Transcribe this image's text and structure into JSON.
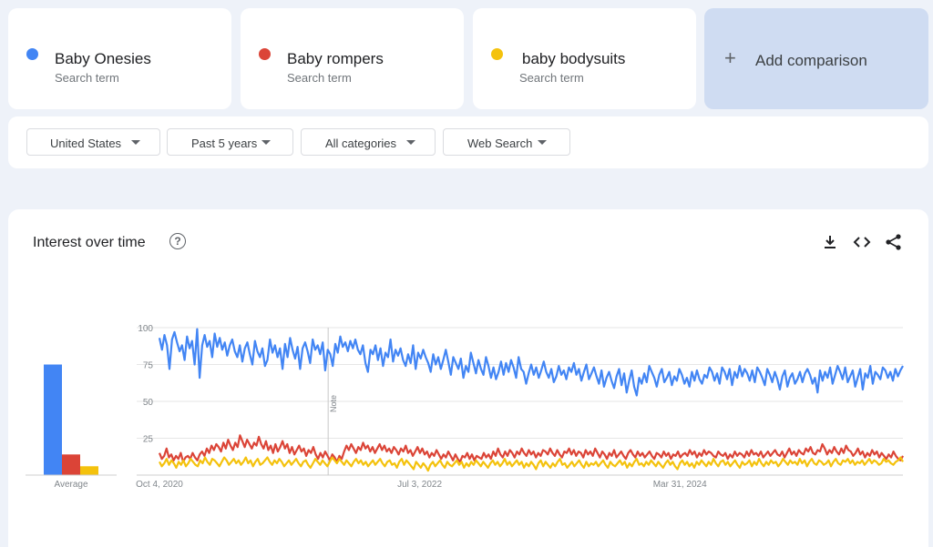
{
  "terms": [
    {
      "name": "Baby Onesies",
      "sub": "Search term",
      "color": "#4285f4"
    },
    {
      "name": "Baby rompers",
      "sub": "Search term",
      "color": "#db4437"
    },
    {
      "name": "baby bodysuits",
      "sub": "Search term",
      "color": "#f4c20d"
    }
  ],
  "add_comparison": "Add comparison",
  "filters": {
    "region": "United States",
    "time": "Past 5 years",
    "category": "All categories",
    "search_type": "Web Search"
  },
  "panel": {
    "title": "Interest over time",
    "icons": [
      "help-icon",
      "download-icon",
      "embed-icon",
      "share-icon"
    ]
  },
  "chart_data": {
    "type": "line",
    "title": "Interest over time",
    "ylim": [
      0,
      100
    ],
    "yticks": [
      25,
      50,
      75,
      100
    ],
    "xtick_labels": [
      "Oct 4, 2020",
      "Jul 3, 2022",
      "Mar 31, 2024"
    ],
    "x_range": [
      "2020-10-04",
      "2025-09-28"
    ],
    "annotation": {
      "label": "Note",
      "date": "2021-11-21"
    },
    "grid": true,
    "averages_label": "Average",
    "averages": [
      75,
      14,
      6
    ],
    "series": [
      {
        "name": "Baby Onesies",
        "color": "#4285f4",
        "values": [
          93,
          85,
          95,
          88,
          72,
          92,
          97,
          90,
          84,
          88,
          78,
          94,
          86,
          91,
          75,
          99,
          66,
          88,
          95,
          87,
          91,
          80,
          96,
          87,
          93,
          85,
          90,
          81,
          88,
          92,
          84,
          80,
          88,
          77,
          86,
          90,
          82,
          75,
          91,
          84,
          80,
          86,
          74,
          78,
          92,
          83,
          88,
          80,
          86,
          72,
          89,
          80,
          93,
          85,
          79,
          87,
          72,
          86,
          90,
          84,
          76,
          92,
          85,
          88,
          82,
          90,
          71,
          85,
          82,
          74,
          89,
          83,
          94,
          87,
          90,
          84,
          91,
          86,
          92,
          85,
          82,
          88,
          76,
          70,
          85,
          82,
          88,
          78,
          86,
          74,
          83,
          80,
          92,
          77,
          85,
          81,
          86,
          78,
          74,
          82,
          76,
          88,
          72,
          83,
          79,
          85,
          80,
          76,
          70,
          82,
          75,
          80,
          72,
          78,
          85,
          77,
          68,
          80,
          76,
          72,
          79,
          66,
          74,
          70,
          83,
          76,
          69,
          78,
          72,
          68,
          80,
          74,
          66,
          73,
          65,
          70,
          77,
          68,
          76,
          70,
          78,
          73,
          66,
          80,
          72,
          70,
          62,
          69,
          75,
          68,
          73,
          66,
          71,
          77,
          70,
          66,
          72,
          63,
          67,
          74,
          68,
          71,
          65,
          73,
          70,
          76,
          68,
          72,
          64,
          70,
          75,
          65,
          69,
          73,
          67,
          62,
          71,
          60,
          66,
          70,
          64,
          59,
          67,
          72,
          61,
          69,
          56,
          64,
          71,
          60,
          54,
          66,
          62,
          69,
          63,
          74,
          70,
          66,
          60,
          68,
          72,
          63,
          66,
          70,
          61,
          67,
          64,
          72,
          68,
          62,
          66,
          60,
          70,
          64,
          71,
          65,
          62,
          68,
          66,
          73,
          70,
          64,
          69,
          62,
          73,
          70,
          65,
          72,
          61,
          70,
          66,
          74,
          67,
          72,
          69,
          64,
          71,
          63,
          73,
          70,
          66,
          61,
          72,
          68,
          63,
          70,
          65,
          58,
          67,
          71,
          60,
          66,
          69,
          62,
          65,
          70,
          63,
          69,
          72,
          68,
          62,
          66,
          56,
          71,
          64,
          70,
          66,
          73,
          62,
          68,
          74,
          70,
          65,
          73,
          63,
          67,
          71,
          60,
          66,
          72,
          58,
          69,
          66,
          74,
          62,
          70,
          68,
          65,
          73,
          71,
          66,
          70,
          64,
          72,
          67,
          71,
          74
        ]
      },
      {
        "name": "Baby rompers",
        "color": "#db4437",
        "values": [
          15,
          11,
          13,
          18,
          12,
          14,
          10,
          13,
          11,
          15,
          9,
          12,
          13,
          11,
          15,
          12,
          10,
          14,
          16,
          13,
          18,
          15,
          20,
          17,
          21,
          19,
          16,
          22,
          18,
          24,
          20,
          17,
          22,
          19,
          27,
          23,
          19,
          24,
          21,
          18,
          22,
          20,
          26,
          21,
          18,
          23,
          17,
          20,
          15,
          21,
          16,
          19,
          23,
          18,
          21,
          15,
          19,
          14,
          17,
          20,
          16,
          18,
          13,
          17,
          15,
          19,
          14,
          11,
          15,
          12,
          16,
          13,
          10,
          14,
          12,
          9,
          13,
          11,
          16,
          20,
          17,
          21,
          18,
          15,
          19,
          17,
          22,
          18,
          20,
          16,
          19,
          15,
          18,
          21,
          17,
          20,
          16,
          18,
          15,
          19,
          17,
          14,
          18,
          16,
          20,
          15,
          17,
          13,
          16,
          19,
          15,
          18,
          14,
          16,
          12,
          15,
          13,
          17,
          14,
          11,
          14,
          12,
          16,
          13,
          10,
          14,
          11,
          9,
          13,
          12,
          15,
          11,
          14,
          10,
          13,
          12,
          11,
          15,
          12,
          14,
          11,
          16,
          13,
          18,
          14,
          12,
          16,
          13,
          17,
          15,
          12,
          16,
          14,
          18,
          15,
          13,
          17,
          14,
          16,
          12,
          15,
          13,
          17,
          16,
          14,
          18,
          15,
          13,
          17,
          14,
          12,
          16,
          15,
          18,
          14,
          17,
          13,
          16,
          15,
          12,
          17,
          14,
          16,
          13,
          18,
          15,
          12,
          16,
          14,
          11,
          15,
          13,
          17,
          12,
          14,
          16,
          13,
          11,
          15,
          17,
          14,
          12,
          16,
          13,
          15,
          12,
          14,
          16,
          13,
          11,
          15,
          14,
          12,
          16,
          13,
          15,
          11,
          14,
          13,
          16,
          12,
          14,
          15,
          13,
          17,
          14,
          16,
          12,
          15,
          13,
          17,
          14,
          16,
          15,
          13,
          12,
          16,
          14,
          13,
          15,
          11,
          14,
          12,
          16,
          13,
          15,
          14,
          12,
          16,
          13,
          17,
          14,
          15,
          13,
          16,
          12,
          14,
          16,
          13,
          15,
          17,
          14,
          13,
          16,
          12,
          15,
          18,
          14,
          16,
          13,
          17,
          15,
          14,
          18,
          16,
          19,
          15,
          14,
          17,
          16,
          21,
          18,
          14,
          17,
          15,
          19,
          16,
          14,
          18,
          15,
          20,
          17,
          16,
          13,
          15,
          18,
          14,
          16,
          12,
          15,
          13,
          17,
          14,
          16,
          12,
          15,
          13,
          11,
          14,
          12,
          16,
          13,
          11,
          10,
          13
        ]
      },
      {
        "name": "baby bodysuits",
        "color": "#f4c20d",
        "values": [
          9,
          6,
          8,
          11,
          7,
          10,
          8,
          5,
          9,
          7,
          10,
          6,
          8,
          11,
          9,
          7,
          6,
          10,
          8,
          12,
          9,
          7,
          11,
          10,
          8,
          6,
          9,
          12,
          10,
          7,
          9,
          11,
          8,
          10,
          7,
          9,
          12,
          8,
          10,
          6,
          9,
          11,
          7,
          8,
          10,
          12,
          9,
          7,
          10,
          8,
          11,
          9,
          6,
          8,
          10,
          7,
          9,
          11,
          8,
          6,
          9,
          10,
          7,
          5,
          8,
          11,
          9,
          7,
          10,
          8,
          6,
          9,
          12,
          10,
          8,
          11,
          9,
          7,
          10,
          8,
          6,
          9,
          11,
          8,
          10,
          7,
          9,
          6,
          8,
          10,
          7,
          9,
          11,
          8,
          6,
          9,
          10,
          7,
          8,
          5,
          9,
          11,
          7,
          10,
          8,
          6,
          4,
          9,
          7,
          5,
          8,
          6,
          3,
          7,
          9,
          6,
          8,
          10,
          7,
          5,
          9,
          7,
          6,
          8,
          10,
          7,
          9,
          5,
          8,
          6,
          9,
          7,
          10,
          8,
          6,
          9,
          7,
          5,
          8,
          10,
          7,
          9,
          6,
          8,
          11,
          7,
          9,
          6,
          8,
          10,
          7,
          9,
          5,
          8,
          6,
          9,
          7,
          4,
          8,
          10,
          6,
          9,
          7,
          5,
          8,
          6,
          9,
          11,
          7,
          8,
          5,
          7,
          9,
          6,
          8,
          10,
          7,
          5,
          9,
          6,
          8,
          7,
          9,
          6,
          8,
          10,
          7,
          5,
          9,
          7,
          6,
          8,
          10,
          7,
          9,
          5,
          8,
          6,
          9,
          11,
          7,
          8,
          6,
          9,
          7,
          10,
          8,
          6,
          9,
          7,
          5,
          8,
          10,
          7,
          9,
          6,
          4,
          8,
          10,
          7,
          9,
          6,
          8,
          5,
          9,
          7,
          10,
          8,
          6,
          9,
          7,
          11,
          8,
          6,
          9,
          10,
          7,
          9,
          6,
          8,
          10,
          7,
          5,
          9,
          7,
          8,
          10,
          6,
          9,
          7,
          11,
          8,
          6,
          9,
          7,
          10,
          8,
          9,
          6,
          8,
          11,
          9,
          7,
          10,
          8,
          9,
          7,
          11,
          8,
          10,
          6,
          9,
          11,
          8,
          7,
          10,
          9,
          7,
          8,
          10,
          6,
          9,
          11,
          8,
          7,
          10,
          9,
          11,
          8,
          10,
          7,
          9,
          8,
          10,
          7,
          9,
          11,
          8,
          10,
          9,
          7,
          8,
          11,
          9,
          10,
          8,
          7,
          9,
          10,
          12,
          9
        ]
      }
    ]
  }
}
